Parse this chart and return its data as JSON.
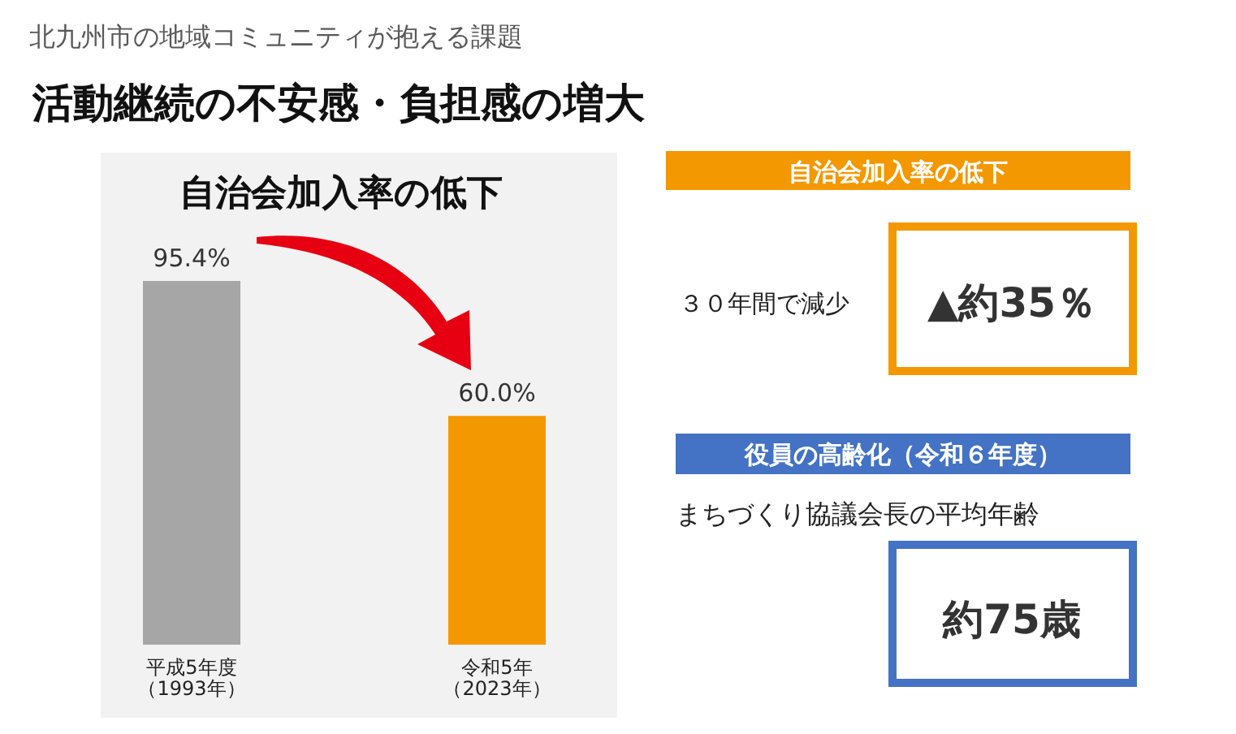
{
  "chart_data": [
    {
      "type": "other",
      "title": "活動継続の不安感・負担感の増大",
      "subtitle": "北九州市の地域コミュニティが抱える課題"
    },
    {
      "type": "bar",
      "title": "自治会加入率の低下",
      "categories": [
        "平成5年度（1993年）",
        "令和5年（2023年）"
      ],
      "values": [
        95.4,
        60.0
      ],
      "colors": [
        "#a6a6a6",
        "#f39800"
      ],
      "value_labels": [
        "95.4%",
        "60.0%"
      ]
    },
    {
      "type": "other",
      "title": "自治会加入率の低下",
      "annotations": [
        "３０年間で減少",
        "▲約35％"
      ]
    },
    {
      "type": "other",
      "title": "役員の高齢化（令和６年度）",
      "annotations": [
        "まちづくり協議会長の平均年齢",
        "約75歳"
      ]
    }
  ]
}
